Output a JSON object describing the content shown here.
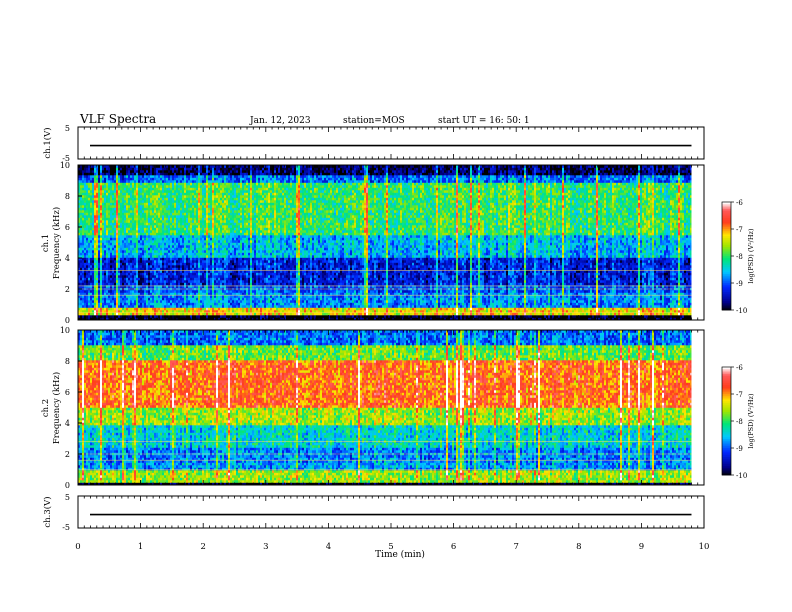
{
  "header": {
    "title": "VLF Spectra",
    "date": "Jan. 12, 2023",
    "station": "station=MOS",
    "start": "start UT =  16: 50: 1"
  },
  "chart_data": [
    {
      "type": "line",
      "name": "ch1-waveform",
      "ylabel": "ch.1(V)",
      "ylim": [
        -5,
        5
      ],
      "yticks": [
        "5",
        "-5"
      ],
      "series": [
        {
          "name": "ch.1",
          "x": [
            0,
            9.8
          ],
          "values": [
            -0.8,
            -0.8
          ]
        }
      ]
    },
    {
      "type": "heatmap",
      "name": "ch1-spectrogram",
      "ylabel": "ch.1\nFrequency (kHz)",
      "ylim": [
        0,
        10
      ],
      "yticks": [
        "0",
        "2",
        "4",
        "6",
        "8",
        "10"
      ],
      "data_extent_min": 9.8,
      "colorbar": {
        "label": "log(PSD) (V²/Hz)",
        "range": [
          -10,
          -6
        ],
        "ticks": [
          "-6",
          "-7",
          "-8",
          "-9",
          "-10"
        ]
      },
      "bands": [
        {
          "range_khz": [
            0,
            0.3
          ],
          "level": -10
        },
        {
          "range_khz": [
            0.3,
            0.8
          ],
          "level": -7.3
        },
        {
          "range_khz": [
            0.8,
            1.7
          ],
          "level": -8.8
        },
        {
          "range_khz": [
            1.7,
            2.3
          ],
          "level": -9.0
        },
        {
          "range_khz": [
            2.3,
            4.0
          ],
          "level": -9.3
        },
        {
          "range_khz": [
            4.0,
            5.5
          ],
          "level": -8.6
        },
        {
          "range_khz": [
            5.5,
            8.8
          ],
          "level": -8.0
        },
        {
          "range_khz": [
            8.8,
            9.4
          ],
          "level": -8.9
        },
        {
          "range_khz": [
            9.4,
            10
          ],
          "level": -9.8
        }
      ],
      "lines_khz": [
        0.5,
        1.6,
        2.0,
        2.2,
        3.2
      ]
    },
    {
      "type": "heatmap",
      "name": "ch2-spectrogram",
      "ylabel": "ch.2\nFrequency (kHz)",
      "ylim": [
        0,
        10
      ],
      "yticks": [
        "0",
        "2",
        "4",
        "6",
        "8",
        "10"
      ],
      "data_extent_min": 9.8,
      "colorbar": {
        "label": "log(PSD) (V²/Hz)",
        "range": [
          -10,
          -6
        ],
        "ticks": [
          "-6",
          "-7",
          "-8",
          "-9",
          "-10"
        ]
      },
      "bands": [
        {
          "range_khz": [
            0,
            0.2
          ],
          "level": -10
        },
        {
          "range_khz": [
            0.2,
            0.9
          ],
          "level": -7.6
        },
        {
          "range_khz": [
            0.9,
            1.5
          ],
          "level": -8.7
        },
        {
          "range_khz": [
            1.5,
            2.4
          ],
          "level": -8.8
        },
        {
          "range_khz": [
            2.4,
            3.8
          ],
          "level": -8.4
        },
        {
          "range_khz": [
            3.8,
            5.0
          ],
          "level": -7.6
        },
        {
          "range_khz": [
            5.0,
            8.0
          ],
          "level": -6.8
        },
        {
          "range_khz": [
            8.0,
            9.0
          ],
          "level": -7.8
        },
        {
          "range_khz": [
            9.0,
            10
          ],
          "level": -8.9
        }
      ],
      "lines_khz": [
        1.0,
        1.6,
        2.0,
        2.8
      ]
    },
    {
      "type": "line",
      "name": "ch3-waveform",
      "ylabel": "ch.3(V)",
      "ylim": [
        -5,
        5
      ],
      "yticks": [
        "5",
        "-5"
      ],
      "series": [
        {
          "name": "ch.3",
          "x": [
            0,
            9.8
          ],
          "values": [
            -0.8,
            -0.8
          ]
        }
      ]
    }
  ],
  "xaxis": {
    "label": "Time (min)",
    "xlim": [
      0,
      10
    ],
    "ticks": [
      "0",
      "1",
      "2",
      "3",
      "4",
      "5",
      "6",
      "7",
      "8",
      "9",
      "10"
    ]
  }
}
